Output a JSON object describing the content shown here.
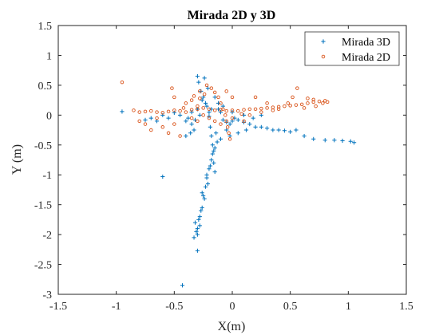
{
  "chart_data": {
    "type": "scatter",
    "title": "Mirada 2D y 3D",
    "xlabel": "X(m)",
    "ylabel": "Y (m)",
    "xlim": [
      -1.5,
      1.5
    ],
    "ylim": [
      -3,
      1.5
    ],
    "xticks": [
      "-1.5",
      "-1",
      "-0.5",
      "0",
      "0.5",
      "1",
      "1.5"
    ],
    "yticks": [
      "-3",
      "-2.5",
      "-2",
      "-1.5",
      "-1",
      "-0.5",
      "0",
      "0.5",
      "1",
      "1.5"
    ],
    "grid": false,
    "legend_position": "top-right",
    "series": [
      {
        "name": "Mirada 3D",
        "color": "#0072BD",
        "marker": "plus",
        "points": [
          [
            -0.95,
            0.06
          ],
          [
            -0.6,
            -1.03
          ],
          [
            -0.5,
            0.04
          ],
          [
            -0.43,
            -2.85
          ],
          [
            -0.4,
            -0.1
          ],
          [
            -0.38,
            -0.05
          ],
          [
            -0.35,
            -0.15
          ],
          [
            -0.32,
            -0.08
          ],
          [
            -0.3,
            0.1
          ],
          [
            -0.3,
            0.65
          ],
          [
            -0.29,
            0.55
          ],
          [
            -0.27,
            0.4
          ],
          [
            -0.25,
            0.3
          ],
          [
            -0.24,
            0.62
          ],
          [
            -0.23,
            0.2
          ],
          [
            -0.22,
            0.15
          ],
          [
            -0.2,
            0.05
          ],
          [
            -0.2,
            -0.02
          ],
          [
            -0.19,
            -0.2
          ],
          [
            -0.18,
            -0.35
          ],
          [
            -0.17,
            -0.5
          ],
          [
            -0.17,
            -0.65
          ],
          [
            -0.16,
            -0.8
          ],
          [
            -0.15,
            -0.95
          ],
          [
            -0.14,
            -0.3
          ],
          [
            -0.2,
            -0.9
          ],
          [
            -0.22,
            -1.05
          ],
          [
            -0.23,
            -1.2
          ],
          [
            -0.25,
            -1.35
          ],
          [
            -0.26,
            -1.55
          ],
          [
            -0.28,
            -1.7
          ],
          [
            -0.28,
            -1.85
          ],
          [
            -0.3,
            -2.0
          ],
          [
            -0.3,
            -2.27
          ],
          [
            -0.31,
            -1.95
          ],
          [
            -0.32,
            -1.8
          ],
          [
            -0.27,
            -1.6
          ],
          [
            -0.24,
            -1.4
          ],
          [
            -0.21,
            -1.15
          ],
          [
            -0.18,
            -0.75
          ],
          [
            -0.15,
            -0.55
          ],
          [
            -0.13,
            -0.45
          ],
          [
            -0.12,
            0.1
          ],
          [
            -0.1,
            0.05
          ],
          [
            -0.08,
            -0.08
          ],
          [
            -0.05,
            -0.12
          ],
          [
            -0.02,
            -0.15
          ],
          [
            0.0,
            -0.1
          ],
          [
            0.02,
            -0.05
          ],
          [
            0.05,
            -0.08
          ],
          [
            0.1,
            -0.12
          ],
          [
            0.15,
            -0.15
          ],
          [
            0.2,
            -0.2
          ],
          [
            0.25,
            -0.2
          ],
          [
            0.3,
            -0.22
          ],
          [
            0.35,
            -0.25
          ],
          [
            0.4,
            -0.25
          ],
          [
            0.45,
            -0.26
          ],
          [
            0.5,
            -0.28
          ],
          [
            0.55,
            -0.25
          ],
          [
            0.62,
            -0.35
          ],
          [
            0.7,
            -0.4
          ],
          [
            0.8,
            -0.42
          ],
          [
            0.88,
            -0.42
          ],
          [
            0.95,
            -0.43
          ],
          [
            1.02,
            -0.44
          ],
          [
            1.05,
            -0.46
          ],
          [
            -0.55,
            -0.05
          ],
          [
            -0.6,
            0.0
          ],
          [
            -0.65,
            -0.1
          ],
          [
            -0.7,
            -0.05
          ],
          [
            -0.75,
            -0.08
          ],
          [
            -0.45,
            0.0
          ],
          [
            -0.35,
            0.05
          ],
          [
            -0.28,
            0.0
          ],
          [
            -0.1,
            -0.4
          ],
          [
            -0.05,
            -0.25
          ],
          [
            0.05,
            -0.3
          ],
          [
            0.25,
            0.0
          ],
          [
            -0.33,
            -0.25
          ],
          [
            -0.36,
            -0.3
          ],
          [
            -0.4,
            -0.35
          ],
          [
            -0.26,
            0.25
          ],
          [
            -0.21,
            0.45
          ],
          [
            -0.15,
            0.3
          ],
          [
            -0.12,
            0.2
          ],
          [
            -0.18,
            0.1
          ],
          [
            0.1,
            0.0
          ],
          [
            -0.3,
            -1.9
          ],
          [
            -0.26,
            -1.3
          ],
          [
            -0.22,
            -1.0
          ],
          [
            -0.19,
            -0.85
          ],
          [
            -0.33,
            -2.05
          ],
          [
            -0.29,
            -1.75
          ],
          [
            -0.08,
            0.15
          ],
          [
            0.0,
            0.05
          ],
          [
            0.18,
            -0.05
          ],
          [
            -0.02,
            -0.35
          ],
          [
            0.12,
            -0.25
          ],
          [
            -0.16,
            -0.6
          ]
        ]
      },
      {
        "name": "Mirada 2D",
        "color": "#D95319",
        "marker": "circle",
        "points": [
          [
            -0.95,
            0.55
          ],
          [
            -0.85,
            0.08
          ],
          [
            -0.8,
            0.05
          ],
          [
            -0.75,
            0.06
          ],
          [
            -0.7,
            0.07
          ],
          [
            -0.65,
            0.05
          ],
          [
            -0.6,
            0.04
          ],
          [
            -0.55,
            0.06
          ],
          [
            -0.5,
            0.08
          ],
          [
            -0.45,
            0.07
          ],
          [
            -0.4,
            0.05
          ],
          [
            -0.35,
            0.09
          ],
          [
            -0.3,
            0.1
          ],
          [
            -0.25,
            0.12
          ],
          [
            -0.2,
            0.1
          ],
          [
            -0.15,
            0.08
          ],
          [
            -0.1,
            0.09
          ],
          [
            -0.05,
            0.07
          ],
          [
            0.0,
            0.08
          ],
          [
            0.05,
            0.07
          ],
          [
            0.1,
            0.09
          ],
          [
            0.15,
            0.1
          ],
          [
            0.2,
            0.1
          ],
          [
            0.25,
            0.11
          ],
          [
            0.3,
            0.12
          ],
          [
            0.35,
            0.13
          ],
          [
            0.4,
            0.14
          ],
          [
            0.45,
            0.15
          ],
          [
            0.5,
            0.16
          ],
          [
            0.55,
            0.17
          ],
          [
            0.6,
            0.18
          ],
          [
            0.65,
            0.2
          ],
          [
            0.7,
            0.22
          ],
          [
            0.75,
            0.23
          ],
          [
            0.8,
            0.24
          ],
          [
            0.82,
            0.22
          ],
          [
            0.72,
            0.15
          ],
          [
            0.62,
            0.12
          ],
          [
            0.56,
            0.45
          ],
          [
            0.52,
            0.3
          ],
          [
            0.48,
            0.2
          ],
          [
            -0.22,
            0.5
          ],
          [
            -0.18,
            0.45
          ],
          [
            -0.15,
            0.38
          ],
          [
            -0.12,
            0.3
          ],
          [
            -0.1,
            0.2
          ],
          [
            -0.08,
            0.1
          ],
          [
            -0.06,
            0.0
          ],
          [
            -0.05,
            -0.1
          ],
          [
            -0.04,
            -0.2
          ],
          [
            -0.03,
            -0.3
          ],
          [
            -0.02,
            -0.4
          ],
          [
            -0.4,
            0.2
          ],
          [
            -0.35,
            0.25
          ],
          [
            -0.3,
            0.15
          ],
          [
            -0.25,
            0.0
          ],
          [
            -0.2,
            -0.05
          ],
          [
            -0.15,
            -0.1
          ],
          [
            -0.1,
            -0.15
          ],
          [
            0.0,
            -0.05
          ],
          [
            0.08,
            0.02
          ],
          [
            0.15,
            0.0
          ],
          [
            -0.5,
            -0.15
          ],
          [
            -0.6,
            -0.2
          ],
          [
            -0.7,
            -0.25
          ],
          [
            -0.45,
            -0.35
          ],
          [
            -0.55,
            -0.3
          ],
          [
            -0.5,
            0.3
          ],
          [
            -0.52,
            0.45
          ],
          [
            -0.33,
            0.32
          ],
          [
            -0.28,
            0.28
          ],
          [
            0.2,
            0.3
          ],
          [
            0.3,
            0.2
          ],
          [
            0.4,
            0.1
          ],
          [
            -0.8,
            -0.1
          ],
          [
            -0.75,
            -0.15
          ],
          [
            -0.65,
            -0.05
          ],
          [
            0.1,
            -0.1
          ],
          [
            -0.05,
            0.4
          ],
          [
            0.0,
            0.3
          ],
          [
            -0.35,
            -0.05
          ],
          [
            -0.3,
            -0.1
          ],
          [
            -0.28,
            0.4
          ],
          [
            -0.24,
            0.35
          ],
          [
            0.65,
            0.28
          ],
          [
            0.7,
            0.26
          ],
          [
            0.78,
            0.2
          ],
          [
            0.25,
            0.05
          ],
          [
            0.35,
            0.08
          ],
          [
            -0.42,
            0.12
          ]
        ]
      }
    ]
  }
}
